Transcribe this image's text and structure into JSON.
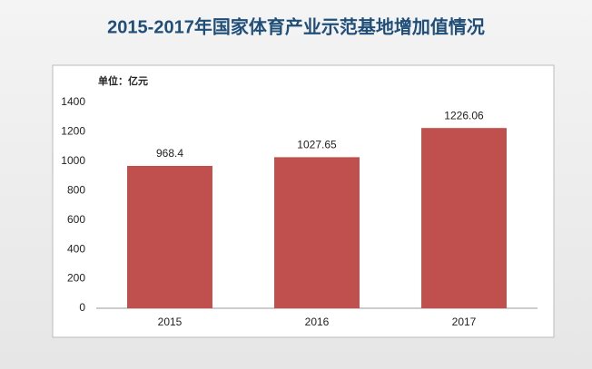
{
  "chart_data": {
    "type": "bar",
    "title": "2015-2017年国家体育产业示范基地增加值情况",
    "unit_label": "单位：亿元",
    "categories": [
      "2015",
      "2016",
      "2017"
    ],
    "values": [
      968.4,
      1027.65,
      1226.06
    ],
    "color": "#c0504d",
    "ylim": [
      0,
      1400
    ],
    "yticks": [
      0,
      200,
      400,
      600,
      800,
      1000,
      1200,
      1400
    ],
    "grid": false
  }
}
